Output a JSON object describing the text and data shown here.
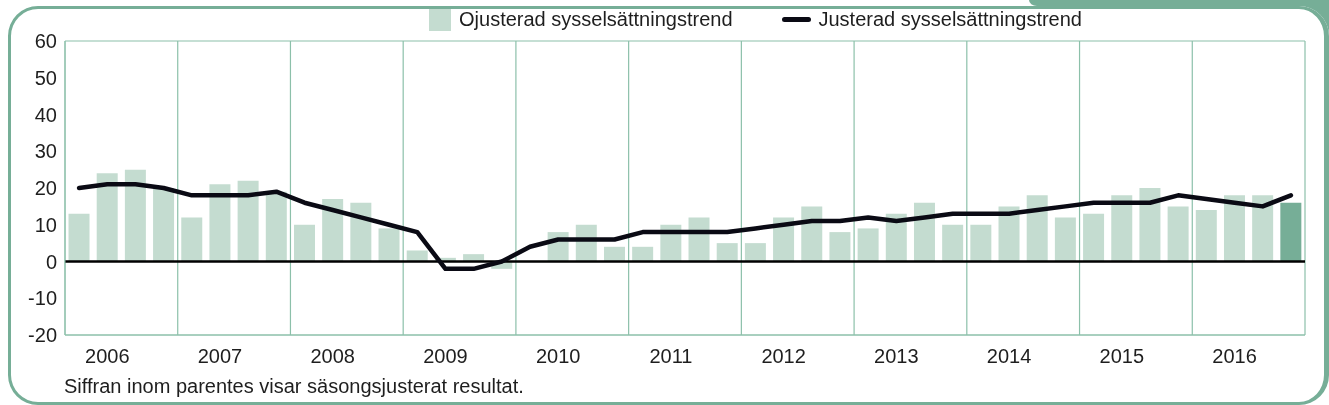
{
  "chart_data": {
    "type": "bar",
    "categories": [
      null,
      "2006",
      null,
      null,
      null,
      "2007",
      null,
      null,
      null,
      "2008",
      null,
      null,
      null,
      "2009",
      null,
      null,
      null,
      "2010",
      null,
      null,
      null,
      "2011",
      null,
      null,
      null,
      "2012",
      null,
      null,
      null,
      "2013",
      null,
      null,
      null,
      "2014",
      null,
      null,
      null,
      "2015",
      null,
      null,
      null,
      "2016",
      null,
      null
    ],
    "series": [
      {
        "name": "Ojusterad sysselsättningstrend",
        "color": "#c4dcd0",
        "colors": [
          "#c4dcd0",
          "#c4dcd0",
          "#c4dcd0",
          "#c4dcd0",
          "#c4dcd0",
          "#c4dcd0",
          "#c4dcd0",
          "#c4dcd0",
          "#c4dcd0",
          "#c4dcd0",
          "#c4dcd0",
          "#c4dcd0",
          "#c4dcd0",
          "#c4dcd0",
          "#c4dcd0",
          "#c4dcd0",
          "#c4dcd0",
          "#c4dcd0",
          "#c4dcd0",
          "#c4dcd0",
          "#c4dcd0",
          "#c4dcd0",
          "#c4dcd0",
          "#c4dcd0",
          "#c4dcd0",
          "#c4dcd0",
          "#c4dcd0",
          "#c4dcd0",
          "#c4dcd0",
          "#c4dcd0",
          "#c4dcd0",
          "#c4dcd0",
          "#c4dcd0",
          "#c4dcd0",
          "#c4dcd0",
          "#c4dcd0",
          "#c4dcd0",
          "#c4dcd0",
          "#c4dcd0",
          "#c4dcd0",
          "#c4dcd0",
          "#c4dcd0",
          "#c4dcd0",
          "#76ae97"
        ],
        "values": [
          13,
          24,
          25,
          20,
          12,
          21,
          22,
          19,
          10,
          17,
          16,
          9,
          3,
          1,
          2,
          -2,
          0,
          8,
          10,
          4,
          4,
          10,
          12,
          5,
          5,
          12,
          15,
          8,
          9,
          13,
          16,
          10,
          10,
          15,
          18,
          12,
          13,
          18,
          20,
          15,
          14,
          18,
          18,
          16
        ]
      },
      {
        "name": "Justerad sysselsättningstrend",
        "type": "line",
        "color": "#0a0a14",
        "values": [
          20,
          21,
          21,
          20,
          18,
          18,
          18,
          19,
          16,
          14,
          12,
          10,
          8,
          -2,
          -2,
          0,
          4,
          6,
          6,
          6,
          8,
          8,
          8,
          8,
          9,
          10,
          11,
          11,
          12,
          11,
          12,
          13,
          13,
          13,
          14,
          15,
          16,
          16,
          16,
          18,
          17,
          16,
          15,
          18
        ]
      }
    ],
    "ylim": [
      -20,
      60
    ],
    "yticks": [
      -20,
      -10,
      0,
      10,
      20,
      30,
      40,
      50,
      60
    ],
    "grid": true,
    "legend": "top",
    "ref_lines": [
      {
        "axis": "y",
        "value": 0,
        "color": "#000000"
      }
    ],
    "annotations": [
      "Siffran inom parentes visar säsongsjusterat resultat."
    ]
  }
}
